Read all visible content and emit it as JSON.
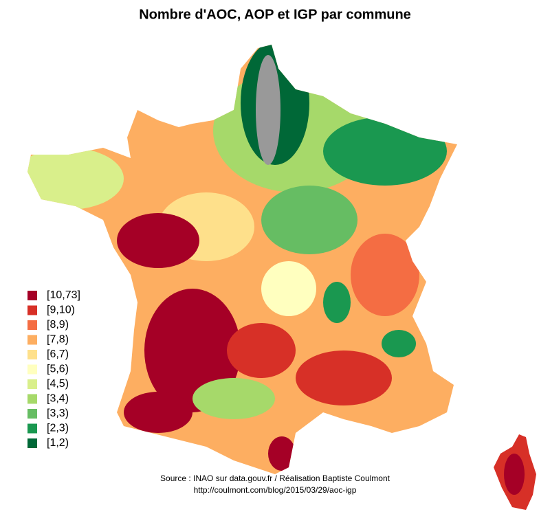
{
  "title": "Nombre d'AOC, AOP et IGP par commune",
  "legend": [
    {
      "label": "[10,73]",
      "color": "#a50026"
    },
    {
      "label": "[9,10)",
      "color": "#d73027"
    },
    {
      "label": "[8,9)",
      "color": "#f46d43"
    },
    {
      "label": "[7,8)",
      "color": "#fdae61"
    },
    {
      "label": "[6,7)",
      "color": "#fee08b"
    },
    {
      "label": "[5,6)",
      "color": "#ffffbf"
    },
    {
      "label": "[4,5)",
      "color": "#d9ef8b"
    },
    {
      "label": "[3,4)",
      "color": "#a6d96a"
    },
    {
      "label": "[3,3)",
      "color": "#66bd63"
    },
    {
      "label": "[2,3)",
      "color": "#1a9850"
    },
    {
      "label": "[1,2)",
      "color": "#006837"
    }
  ],
  "source": [
    "Source : INAO sur data.gouv.fr / Réalisation Baptiste Coulmont",
    "http://coulmont.com/blog/2015/03/29/aoc-igp"
  ]
}
